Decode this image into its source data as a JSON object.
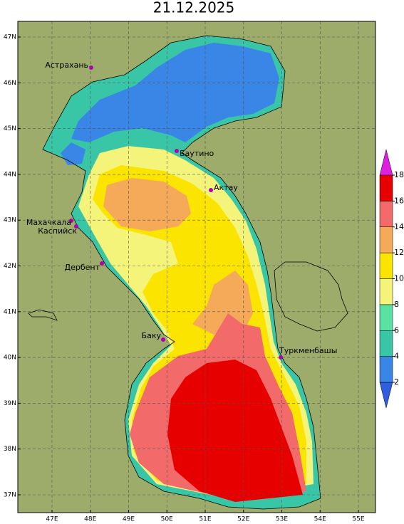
{
  "title": "21.12.2025",
  "lat_labels": [
    "47N",
    "46N",
    "45N",
    "44N",
    "43N",
    "42N",
    "41N",
    "40N",
    "39N",
    "38N",
    "37N"
  ],
  "lon_labels": [
    "47E",
    "48E",
    "49E",
    "50E",
    "51E",
    "52E",
    "53E",
    "54E",
    "55E"
  ],
  "cities": [
    "Астрахань",
    "Баутино",
    "Актау",
    "Махачкала",
    "Каспийск",
    "Дербент",
    "Баку",
    "Туркменбашы"
  ],
  "colorbar": {
    "ticks": [
      2,
      4,
      6,
      8,
      10,
      12,
      14,
      16,
      18
    ],
    "colors": [
      "#2f5fe0",
      "#3a86e6",
      "#38c6a6",
      "#5ae2a2",
      "#f4f47a",
      "#fbe400",
      "#f4aa58",
      "#f26a6a",
      "#e60000",
      "#e020e0"
    ]
  }
}
